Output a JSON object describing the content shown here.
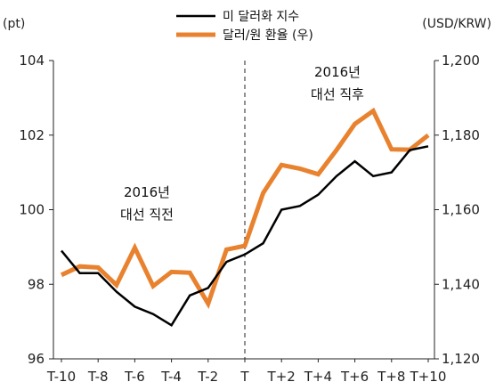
{
  "chart_data": {
    "type": "line",
    "title": "",
    "categories": [
      "T-10",
      "T-9",
      "T-8",
      "T-7",
      "T-6",
      "T-5",
      "T-4",
      "T-3",
      "T-2",
      "T-1",
      "T",
      "T+1",
      "T+2",
      "T+3",
      "T+4",
      "T+5",
      "T+6",
      "T+7",
      "T+8",
      "T+9",
      "T+10"
    ],
    "x_tick_labels": [
      "T-10",
      "T-8",
      "T-6",
      "T-4",
      "T-2",
      "T",
      "T+2",
      "T+4",
      "T+6",
      "T+8",
      "T+10"
    ],
    "y_left": {
      "unit": "(pt)",
      "ylim": [
        96,
        104
      ],
      "ticks": [
        "96",
        "98",
        "100",
        "102",
        "104"
      ]
    },
    "y_right": {
      "unit": "(USD/KRW)",
      "ylim": [
        1120,
        1200
      ],
      "ticks": [
        "1,120",
        "1,140",
        "1,160",
        "1,180",
        "1,200"
      ]
    },
    "series": [
      {
        "name": "미 달러화 지수",
        "axis": "left",
        "color": "#000000",
        "values": [
          98.9,
          98.3,
          98.3,
          97.8,
          97.4,
          97.2,
          96.9,
          97.7,
          97.9,
          98.6,
          98.8,
          99.1,
          100.0,
          100.1,
          100.4,
          100.9,
          101.3,
          100.9,
          101.0,
          101.6,
          101.7
        ]
      },
      {
        "name": "달러/원 환율 (우)",
        "axis": "right",
        "color": "#E8822F",
        "values": [
          1142.5,
          1144.8,
          1144.5,
          1139.8,
          1149.8,
          1139.5,
          1143.3,
          1143.1,
          1134.8,
          1149.3,
          1150.3,
          1164.5,
          1172,
          1171,
          1169.5,
          1176,
          1183,
          1186.5,
          1176.2,
          1176.1,
          1180
        ]
      }
    ],
    "event_marker": {
      "category": "T",
      "style": "dashed"
    },
    "annotations": [
      {
        "lines": [
          "2016년",
          "대선 직전"
        ]
      },
      {
        "lines": [
          "2016년",
          "대선 직후"
        ]
      }
    ],
    "legend_position": "top-center",
    "grid": false
  }
}
